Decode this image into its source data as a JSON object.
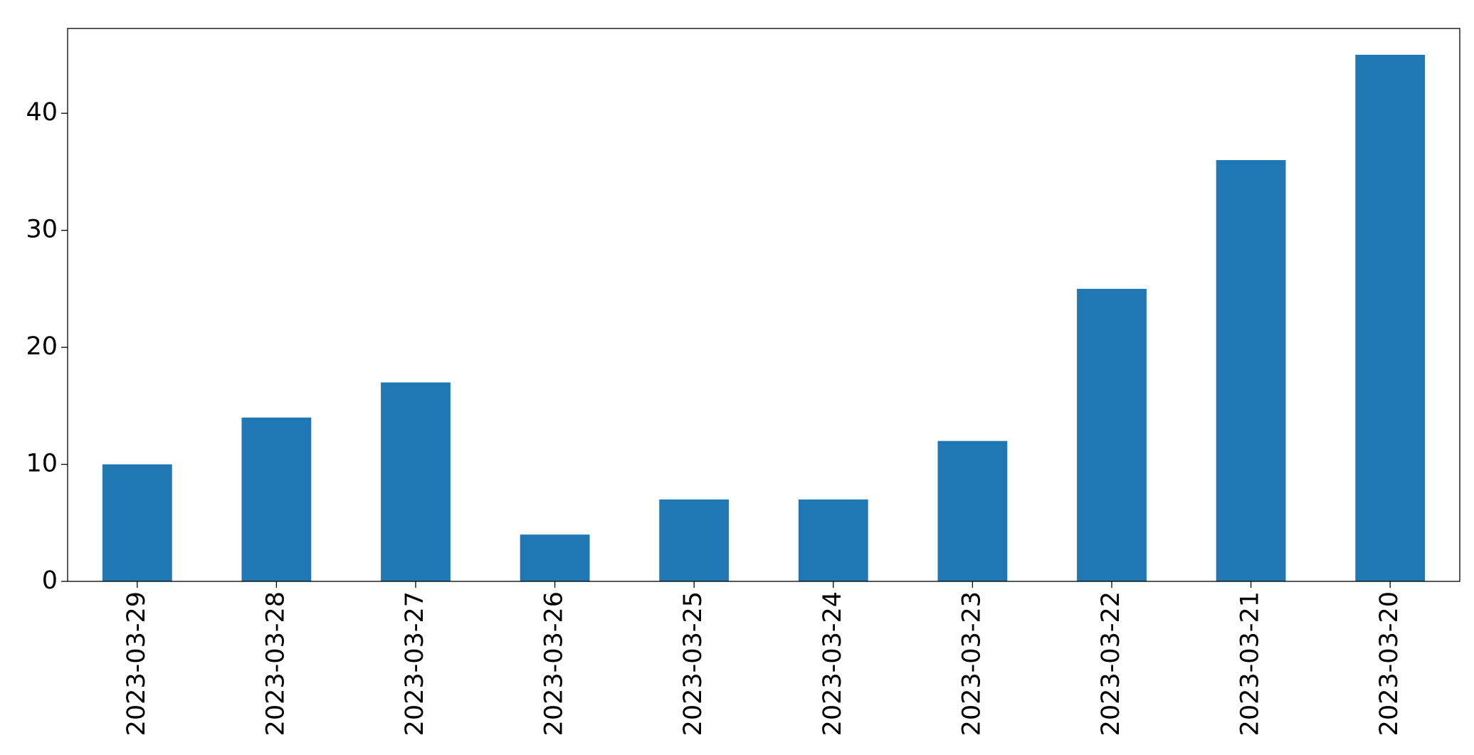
{
  "chart_data": {
    "type": "bar",
    "categories": [
      "2023-03-29",
      "2023-03-28",
      "2023-03-27",
      "2023-03-26",
      "2023-03-25",
      "2023-03-24",
      "2023-03-23",
      "2023-03-22",
      "2023-03-21",
      "2023-03-20"
    ],
    "values": [
      10,
      14,
      17,
      4,
      7,
      7,
      12,
      25,
      36,
      45
    ],
    "color": "#1f77b4",
    "ylim": [
      0,
      47.25
    ],
    "yticks": [
      0,
      10,
      20,
      30,
      40
    ],
    "grid": false
  }
}
